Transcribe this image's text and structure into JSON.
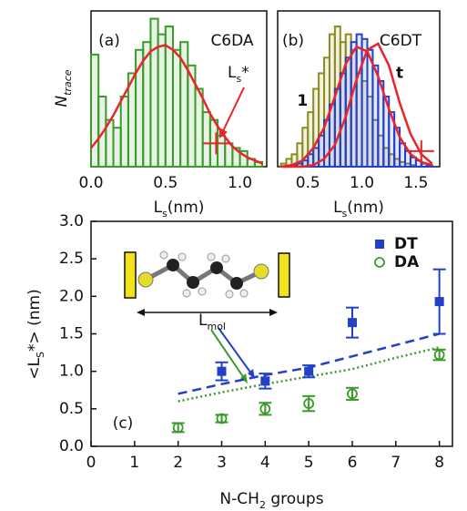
{
  "chart_data": [
    {
      "type": "histogram",
      "panel_label": "(a)",
      "title": "C6DA",
      "ylabel": [
        "N",
        "trace"
      ],
      "xlabel": [
        "L",
        "s",
        "(nm)"
      ],
      "xlim": [
        0,
        1.18
      ],
      "ylim": [
        0,
        1
      ],
      "xticks": [
        {
          "value": 0,
          "label": "0.0"
        },
        0.5,
        {
          "value": 1,
          "label": "1.0"
        }
      ],
      "bins": [
        0,
        0.05,
        0.1,
        0.15,
        0.2,
        0.25,
        0.3,
        0.35,
        0.4,
        0.45,
        0.5,
        0.55,
        0.6,
        0.65,
        0.7,
        0.75,
        0.8,
        0.85,
        0.9,
        0.95,
        1.0,
        1.05,
        1.1,
        1.15
      ],
      "series": [
        {
          "color": "#3a9a2a",
          "values": [
            0.72,
            0.45,
            0.3,
            0.25,
            0.45,
            0.6,
            0.75,
            0.8,
            0.95,
            0.85,
            0.9,
            0.75,
            0.8,
            0.65,
            0.5,
            0.35,
            0.3,
            0.2,
            0.15,
            0.12,
            0.1,
            0.05,
            0.03
          ]
        }
      ],
      "fits": [
        {
          "color": "#e8252a",
          "x": [
            0,
            0.05,
            0.1,
            0.15,
            0.2,
            0.25,
            0.3,
            0.35,
            0.4,
            0.45,
            0.5,
            0.55,
            0.6,
            0.65,
            0.7,
            0.75,
            0.8,
            0.85,
            0.9,
            0.95,
            1.0,
            1.05,
            1.1,
            1.15
          ],
          "values": [
            0.12,
            0.18,
            0.25,
            0.33,
            0.42,
            0.51,
            0.6,
            0.68,
            0.74,
            0.77,
            0.78,
            0.75,
            0.7,
            0.62,
            0.53,
            0.44,
            0.34,
            0.26,
            0.19,
            0.13,
            0.09,
            0.06,
            0.04,
            0.02
          ]
        }
      ],
      "markers": [
        {
          "x": 0.84,
          "value": 0.15,
          "color": "#e8252a"
        }
      ],
      "annotation": [
        "L",
        "s",
        "*"
      ],
      "annotation_color": "#e8252a"
    },
    {
      "type": "histogram",
      "panel_label": "(b)",
      "title": "C6DT",
      "xlabel": [
        "L",
        "s",
        "(nm)"
      ],
      "xlim": [
        0.22,
        1.72
      ],
      "ylim": [
        0,
        1
      ],
      "xticks": [
        0.5,
        {
          "value": 1,
          "label": "1.0"
        },
        1.5
      ],
      "bins": [
        0.25,
        0.3,
        0.35,
        0.4,
        0.45,
        0.5,
        0.55,
        0.6,
        0.65,
        0.7,
        0.75,
        0.8,
        0.85,
        0.9,
        0.95,
        1.0,
        1.05,
        1.1,
        1.15,
        1.2,
        1.25,
        1.3,
        1.35,
        1.4,
        1.45,
        1.5,
        1.55,
        1.6,
        1.65
      ],
      "series": [
        {
          "label": "1",
          "color": "#8c8c1e",
          "values": [
            0.02,
            0.05,
            0.08,
            0.15,
            0.25,
            0.35,
            0.5,
            0.6,
            0.7,
            0.85,
            0.9,
            0.8,
            0.85,
            0.75,
            0.6,
            0.55,
            0.45,
            0.3,
            0.2,
            0.12,
            0.08,
            0.05,
            0.03,
            0.02,
            0.01,
            0,
            0,
            0
          ]
        },
        {
          "label": "t",
          "color": "#2340c8",
          "values": [
            0,
            0,
            0.01,
            0.02,
            0.04,
            0.08,
            0.12,
            0.2,
            0.3,
            0.4,
            0.5,
            0.6,
            0.7,
            0.8,
            0.85,
            0.82,
            0.75,
            0.65,
            0.55,
            0.45,
            0.35,
            0.25,
            0.15,
            0.1,
            0.06,
            0.04,
            0.02,
            0.01
          ]
        }
      ],
      "fits": [
        {
          "color": "#e8252a",
          "x": [
            0.25,
            0.35,
            0.45,
            0.55,
            0.65,
            0.75,
            0.85,
            0.95,
            1.05,
            1.15,
            1.25,
            1.35,
            1.45,
            1.55,
            1.65
          ],
          "values": [
            0,
            0.01,
            0.04,
            0.12,
            0.25,
            0.45,
            0.66,
            0.77,
            0.74,
            0.58,
            0.37,
            0.19,
            0.08,
            0.03,
            0.01
          ]
        },
        {
          "color": "#e8252a",
          "x": [
            0.25,
            0.35,
            0.45,
            0.55,
            0.65,
            0.75,
            0.85,
            0.95,
            1.05,
            1.15,
            1.25,
            1.35,
            1.45,
            1.55,
            1.65
          ],
          "values": [
            0,
            0,
            0,
            0.01,
            0.05,
            0.14,
            0.32,
            0.56,
            0.75,
            0.79,
            0.65,
            0.41,
            0.21,
            0.08,
            0.02
          ]
        }
      ],
      "markers": [
        {
          "x": 1.55,
          "value": 0.1,
          "color": "#e8252a"
        }
      ]
    },
    {
      "type": "errorbar",
      "panel_label": "(c)",
      "ylabel": [
        "<L",
        "S",
        "*> (nm)"
      ],
      "xlabel": [
        "N-CH",
        "2",
        " groups"
      ],
      "xlim": [
        0,
        8.3
      ],
      "ylim": [
        0,
        3
      ],
      "xticks": [
        0,
        1,
        2,
        3,
        4,
        5,
        6,
        7,
        8
      ],
      "yticks": [
        {
          "value": 0,
          "label": "0.0"
        },
        0.5,
        {
          "value": 1,
          "label": "1.0"
        },
        1.5,
        {
          "value": 2,
          "label": "2.0"
        },
        2.5,
        {
          "value": 3,
          "label": "3.0"
        }
      ],
      "legend": "upper right",
      "series": [
        {
          "name": "DT",
          "color": "#2340c8",
          "marker": "square",
          "x": [
            3,
            4,
            5,
            6,
            8
          ],
          "values": [
            1.0,
            0.87,
            1.0,
            1.65,
            1.93
          ],
          "errors": [
            0.12,
            0.1,
            0.08,
            0.2,
            0.43
          ]
        },
        {
          "name": "DA",
          "color": "#3a9a2a",
          "marker": "circle",
          "x": [
            2,
            3,
            4,
            5,
            6,
            8
          ],
          "values": [
            0.25,
            0.37,
            0.5,
            0.57,
            0.7,
            1.22
          ],
          "errors": [
            0.06,
            0.05,
            0.08,
            0.1,
            0.08,
            0.07
          ]
        }
      ],
      "lines": [
        {
          "color": "#2340c8",
          "linestyle": "dashed",
          "x": [
            2,
            3,
            4,
            5,
            6,
            7,
            8
          ],
          "values": [
            0.7,
            0.83,
            0.95,
            1.05,
            1.2,
            1.35,
            1.5
          ]
        },
        {
          "color": "#3a9a2a",
          "linestyle": "dotted",
          "x": [
            2,
            3,
            4,
            5,
            6,
            7,
            8
          ],
          "values": [
            0.6,
            0.72,
            0.83,
            0.93,
            1.03,
            1.18,
            1.32
          ]
        }
      ],
      "annotation": [
        "L",
        "mol"
      ]
    }
  ]
}
